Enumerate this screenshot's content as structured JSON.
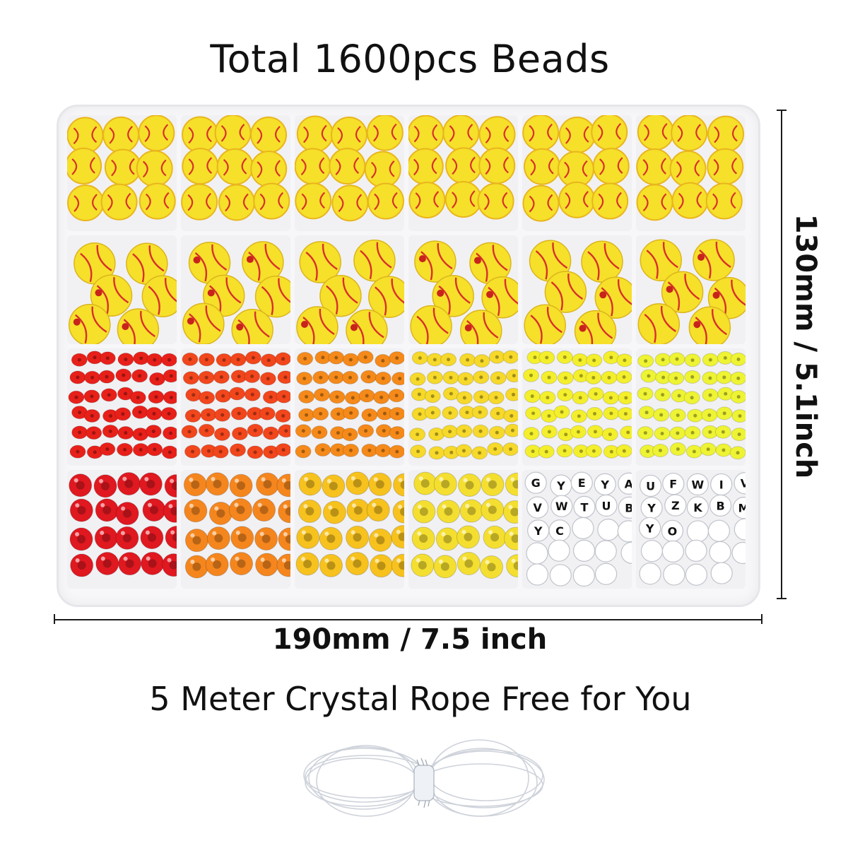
{
  "title": "Total 1600pcs Beads",
  "width_label": "190mm / 7.5 inch",
  "height_label": "130mm / 5.1inch",
  "rope_label": "5 Meter Crystal Rope Free for You",
  "colors": {
    "softball_yellow": "#f6e02a",
    "stitch_red": "#d8302a",
    "clay": [
      "#e8201a",
      "#f2461c",
      "#f58a1a",
      "#f6d92a",
      "#f4ef2c",
      "#eef334"
    ],
    "pony": [
      "#e01820",
      "#f5861e",
      "#f7c21e",
      "#f4df30"
    ],
    "letter_bead": "#ffffff",
    "box_border": "#e6e6ea"
  },
  "letter_beads": {
    "left": [
      "G",
      "Y",
      "E",
      "Y",
      "A",
      "V",
      "W",
      "T",
      "U",
      "B",
      "Y",
      "C"
    ],
    "right": [
      "U",
      "F",
      "W",
      "I",
      "V",
      "Y",
      "Z",
      "K",
      "B",
      "M",
      "Y",
      "O"
    ]
  }
}
